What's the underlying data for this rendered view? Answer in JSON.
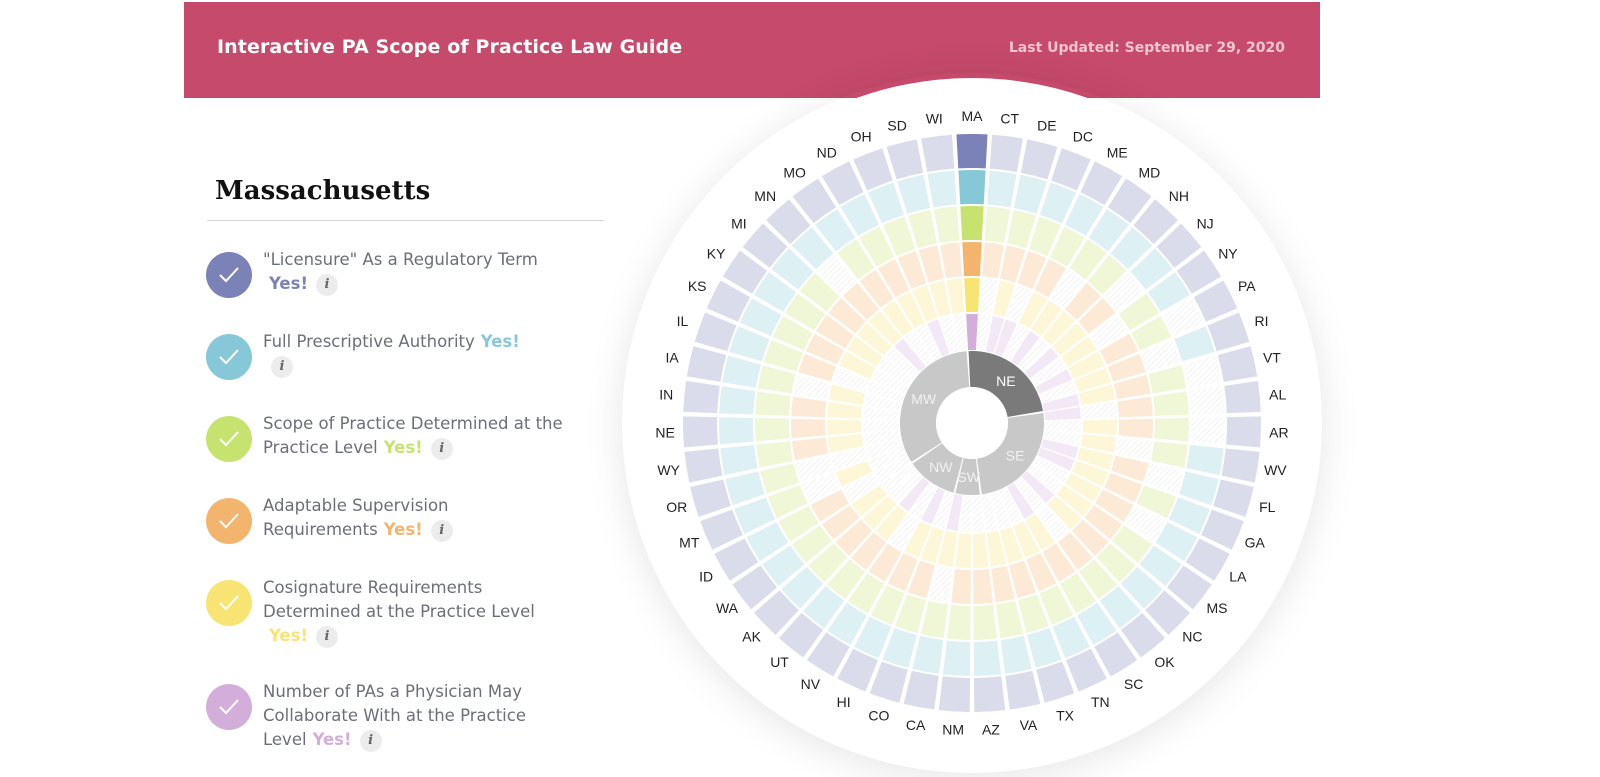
{
  "header": {
    "title": "Interactive PA Scope of Practice Law Guide",
    "updated": "Last Updated: September 29, 2020",
    "bg_color": "#c54a6b"
  },
  "state": {
    "name": "Massachusetts"
  },
  "criteria": [
    {
      "lines": [
        "\"Licensure\" As a Regulatory Term"
      ],
      "answer": "Yes!",
      "color": "#7a82b8",
      "yes_on_line": 2
    },
    {
      "lines": [
        "Full Prescriptive Authority"
      ],
      "answer": "Yes!",
      "color": "#86c8d7",
      "yes_on_line": 1
    },
    {
      "lines": [
        "Scope of Practice Determined at the",
        "Practice Level"
      ],
      "answer": "Yes!",
      "color": "#c5e36e",
      "yes_on_line": 2
    },
    {
      "lines": [
        "Adaptable Supervision",
        "Requirements"
      ],
      "answer": "Yes!",
      "color": "#f3b46e",
      "yes_on_line": 2
    },
    {
      "lines": [
        "Cosignature Requirements",
        "Determined at the Practice Level"
      ],
      "answer": "Yes!",
      "color": "#f8e472",
      "yes_on_line": 3
    },
    {
      "lines": [
        "Number of PAs a Physician May",
        "Collaborate With at the Practice",
        "Level"
      ],
      "answer": "Yes!",
      "color": "#d3aedb",
      "yes_on_line": 3
    }
  ],
  "info_icon": "info-icon",
  "wheel": {
    "states": [
      "MA",
      "CT",
      "DE",
      "DC",
      "ME",
      "MD",
      "NH",
      "NJ",
      "NY",
      "PA",
      "RI",
      "VT",
      "AL",
      "AR",
      "WV",
      "FL",
      "GA",
      "LA",
      "MS",
      "NC",
      "OK",
      "SC",
      "TN",
      "TX",
      "VA",
      "AZ",
      "NM",
      "CA",
      "CO",
      "HI",
      "NV",
      "UT",
      "AK",
      "WA",
      "ID",
      "MT",
      "OR",
      "WY",
      "NE",
      "IN",
      "IA",
      "IL",
      "KS",
      "KY",
      "MI",
      "MN",
      "MO",
      "ND",
      "OH",
      "SD",
      "WI"
    ],
    "selected": "MA",
    "regions": [
      {
        "label": "NE",
        "selected": true
      },
      {
        "label": "SE",
        "selected": false
      },
      {
        "label": "SW",
        "selected": false
      },
      {
        "label": "NW",
        "selected": false
      },
      {
        "label": "MW",
        "selected": false
      }
    ],
    "region_counts": [
      12,
      13,
      3,
      6,
      17
    ],
    "ring_colors": [
      "#d3aedb",
      "#f8e472",
      "#f3b46e",
      "#c5e36e",
      "#86c8d7",
      "#7a82b8"
    ],
    "state_matrix": [
      [
        1,
        1,
        1,
        1,
        1,
        1
      ],
      [
        0,
        0,
        1,
        1,
        1,
        1
      ],
      [
        1,
        1,
        1,
        1,
        1,
        1
      ],
      [
        1,
        0,
        1,
        1,
        1,
        1
      ],
      [
        0,
        1,
        1,
        1,
        1,
        1
      ],
      [
        1,
        1,
        0,
        1,
        1,
        1
      ],
      [
        0,
        1,
        1,
        1,
        1,
        1
      ],
      [
        1,
        1,
        1,
        0,
        1,
        1
      ],
      [
        0,
        1,
        0,
        1,
        1,
        1
      ],
      [
        1,
        1,
        1,
        1,
        0,
        1
      ],
      [
        0,
        1,
        1,
        0,
        1,
        1
      ],
      [
        1,
        1,
        1,
        1,
        0,
        1
      ],
      [
        1,
        0,
        1,
        1,
        0,
        1
      ],
      [
        0,
        1,
        1,
        1,
        0,
        1
      ],
      [
        0,
        1,
        0,
        1,
        1,
        1
      ],
      [
        1,
        1,
        1,
        0,
        1,
        1
      ],
      [
        1,
        1,
        1,
        1,
        1,
        1
      ],
      [
        0,
        1,
        1,
        0,
        1,
        1
      ],
      [
        0,
        1,
        1,
        1,
        1,
        1
      ],
      [
        1,
        1,
        1,
        1,
        1,
        1
      ],
      [
        0,
        0,
        1,
        1,
        1,
        1
      ],
      [
        1,
        1,
        1,
        1,
        1,
        1
      ],
      [
        0,
        1,
        1,
        1,
        1,
        1
      ],
      [
        0,
        1,
        1,
        1,
        1,
        1
      ],
      [
        0,
        1,
        1,
        1,
        1,
        1
      ],
      [
        0,
        1,
        1,
        1,
        1,
        1
      ],
      [
        0,
        1,
        1,
        1,
        1,
        1
      ],
      [
        1,
        1,
        0,
        1,
        1,
        1
      ],
      [
        0,
        1,
        1,
        1,
        1,
        1
      ],
      [
        1,
        1,
        1,
        1,
        1,
        1
      ],
      [
        0,
        0,
        1,
        1,
        1,
        1
      ],
      [
        1,
        1,
        1,
        1,
        1,
        1
      ],
      [
        0,
        1,
        1,
        1,
        1,
        1
      ],
      [
        0,
        1,
        1,
        1,
        1,
        1
      ],
      [
        0,
        0,
        1,
        1,
        1,
        1
      ],
      [
        0,
        1,
        0,
        1,
        1,
        1
      ],
      [
        0,
        0,
        0,
        1,
        1,
        1
      ],
      [
        0,
        1,
        1,
        1,
        1,
        1
      ],
      [
        0,
        1,
        1,
        1,
        1,
        1
      ],
      [
        0,
        1,
        1,
        1,
        1,
        1
      ],
      [
        0,
        1,
        0,
        1,
        1,
        1
      ],
      [
        0,
        0,
        1,
        1,
        1,
        1
      ],
      [
        0,
        1,
        1,
        1,
        1,
        1
      ],
      [
        0,
        1,
        1,
        1,
        1,
        1
      ],
      [
        0,
        1,
        1,
        1,
        1,
        1
      ],
      [
        1,
        1,
        1,
        0,
        1,
        1
      ],
      [
        0,
        1,
        1,
        1,
        1,
        1
      ],
      [
        0,
        1,
        1,
        1,
        1,
        1
      ],
      [
        1,
        1,
        1,
        1,
        1,
        1
      ],
      [
        0,
        1,
        1,
        1,
        1,
        1
      ],
      [
        0,
        1,
        1,
        1,
        1,
        1
      ]
    ]
  }
}
